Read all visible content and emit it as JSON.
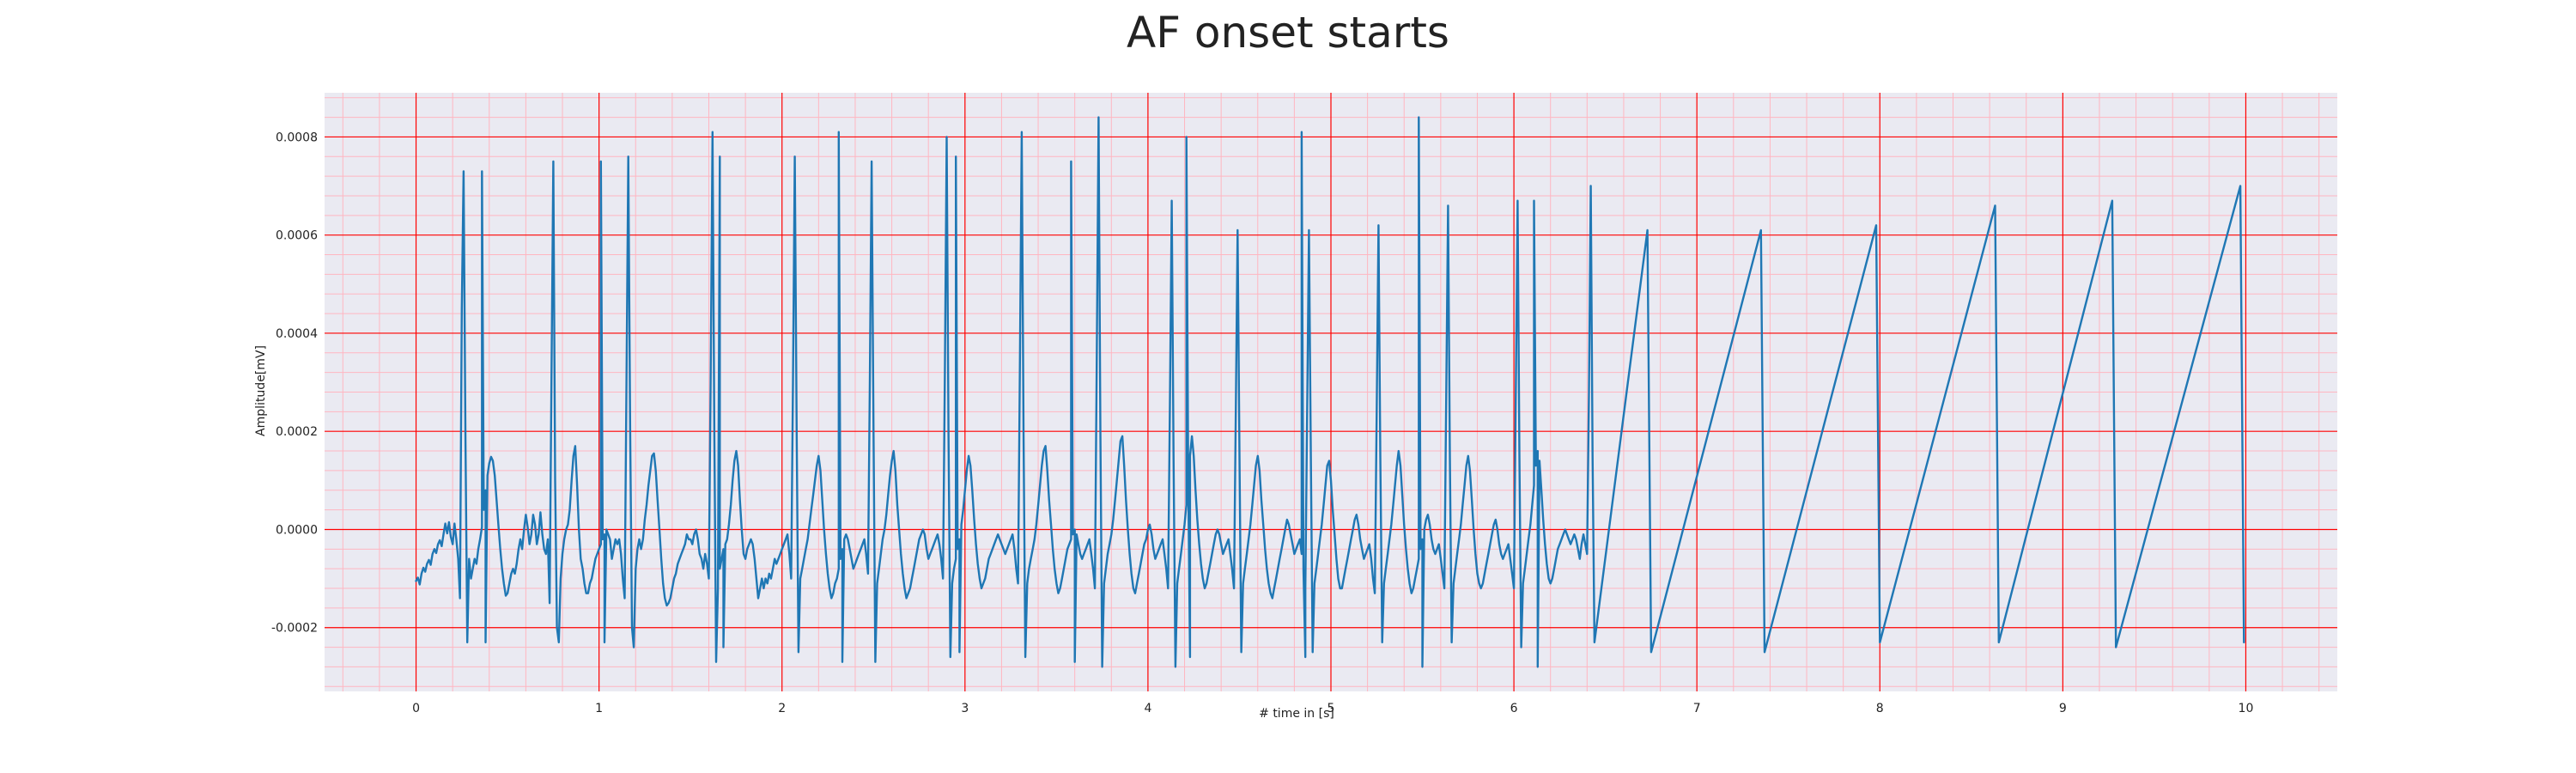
{
  "chart_data": {
    "type": "line",
    "title": "AF onset starts",
    "xlabel": "# time in [s]",
    "ylabel": "Amplitude[mV]",
    "xlim": [
      -0.5,
      10.5
    ],
    "ylim": [
      -0.00033,
      0.00089
    ],
    "xticks": [
      0,
      1,
      2,
      3,
      4,
      5,
      6,
      7,
      8,
      9,
      10
    ],
    "xtick_labels": [
      "0",
      "1",
      "2",
      "3",
      "4",
      "5",
      "6",
      "7",
      "8",
      "9",
      "10"
    ],
    "yticks": [
      -0.0002,
      0.0,
      0.0002,
      0.0004,
      0.0006,
      0.0008
    ],
    "ytick_labels": [
      "-0.0002",
      "0.0000",
      "0.0002",
      "0.0004",
      "0.0006",
      "0.0008"
    ],
    "grid": true,
    "minor_grid": true,
    "colors": {
      "background": "#eaeaf2",
      "major_grid": "#ff0000",
      "minor_grid": "#ffb6c1",
      "line": "#1f77b4"
    },
    "series": [
      {
        "sampling_hz": 100,
        "x_start": 0.0,
        "r_peaks": [
          {
            "t": 0.36,
            "amp": 0.00073,
            "s": -0.00023
          },
          {
            "t": 1.01,
            "amp": 0.00075,
            "s": -0.00023
          },
          {
            "t": 1.66,
            "amp": 0.00076,
            "s": -0.00024
          },
          {
            "t": 2.31,
            "amp": 0.00081,
            "s": -0.00027
          },
          {
            "t": 2.95,
            "amp": 0.00076,
            "s": -0.00025
          },
          {
            "t": 3.58,
            "amp": 0.00075,
            "s": -0.00027
          },
          {
            "t": 4.21,
            "amp": 0.0008,
            "s": -0.00026
          },
          {
            "t": 4.84,
            "amp": 0.00081,
            "s": -0.00026
          },
          {
            "t": 5.48,
            "amp": 0.00084,
            "s": -0.00028
          },
          {
            "t": 6.11,
            "amp": 0.00067,
            "s": -0.00028
          },
          {
            "t": 6.73,
            "amp": 0.00061,
            "s": -0.00025
          },
          {
            "t": 7.35,
            "amp": 0.00061,
            "s": -0.00025
          },
          {
            "t": 7.98,
            "amp": 0.00062,
            "s": -0.00023
          },
          {
            "t": 8.63,
            "amp": 0.00066,
            "s": -0.00023
          },
          {
            "t": 9.27,
            "amp": 0.00067,
            "s": -0.00024
          },
          {
            "t": 9.97,
            "amp": 0.0007,
            "s": -0.00023
          }
        ],
        "y": [
          -0.000105,
          -9.8e-05,
          -0.000112,
          -9e-05,
          -7.8e-05,
          -8.6e-05,
          -7e-05,
          -6.2e-05,
          -7.2e-05,
          -5e-05,
          -4e-05,
          -4.8e-05,
          -3e-05,
          -2.2e-05,
          -3.4e-05,
          -1e-05,
          1.2e-05,
          -8e-06,
          1.5e-05,
          -1.5e-05,
          -3e-05,
          1.2e-05,
          -2e-05,
          -6e-05,
          -0.00014,
          0.00045,
          0.00073,
          0.00018,
          -0.00023,
          -6e-05,
          -0.0001,
          -8e-05,
          -6e-05,
          -7e-05,
          -4e-05,
          -2e-05,
          5e-06,
          4e-05,
          8e-05,
          0.00011,
          0.000135,
          0.000148,
          0.00014,
          0.00011,
          6e-05,
          1e-05,
          -4e-05,
          -8e-05,
          -0.00011,
          -0.000135,
          -0.00013,
          -0.00011,
          -9e-05,
          -8e-05,
          -9e-05,
          -7e-05,
          -4e-05,
          -2e-05,
          -4e-05,
          0.0,
          3e-05,
          5e-06,
          -3e-05,
          -1e-05,
          3e-05,
          1e-05,
          -3e-05,
          -1e-05,
          3.5e-05,
          -1e-05,
          -4e-05,
          -5e-05,
          -2e-05,
          -0.00015,
          0.0003,
          0.00075,
          0.0001,
          -0.0002,
          -0.00023,
          -0.0001,
          -5e-05,
          -2e-05,
          0.0,
          1e-05,
          4e-05,
          0.0001,
          0.00015,
          0.00017,
          9e-05,
          0.0,
          -6e-05,
          -8e-05,
          -0.00011,
          -0.00013,
          -0.00013,
          -0.00011,
          -0.0001,
          -8e-05,
          -6e-05,
          -5e-05,
          -4e-05,
          -3e-05,
          -2e-05,
          -1e-05,
          0.0,
          -1e-05,
          -2e-05,
          -6e-05,
          -4e-05,
          -2e-05,
          -3e-05,
          -2e-05,
          -5e-05,
          -0.0001,
          -0.00014,
          0.0003,
          0.00076,
          0.0002,
          -0.0002,
          -0.00024,
          -8e-05,
          -4e-05,
          -2e-05,
          -4e-05,
          -2e-05,
          2e-05,
          5e-05,
          9e-05,
          0.00012,
          0.00015,
          0.000155,
          0.00012,
          6e-05,
          0.0,
          -6e-05,
          -0.00011,
          -0.00014,
          -0.000155,
          -0.00015,
          -0.00014,
          -0.00012,
          -0.0001,
          -9e-05,
          -7e-05,
          -6e-05,
          -5e-05,
          -4e-05,
          -3e-05,
          -1e-05,
          -2e-05,
          -2e-05,
          -3e-05,
          -1e-05,
          0.0,
          -2e-05,
          -5e-05,
          -6e-05,
          -8e-05,
          -5e-05,
          -7e-05,
          -0.0001,
          0.0003,
          0.00081,
          0.0002,
          -0.00027,
          -0.00012,
          -8e-05,
          -6e-05,
          -4e-05,
          -3e-05,
          -2e-05,
          1e-05,
          5e-05,
          0.0001,
          0.00014,
          0.00016,
          0.00013,
          6e-05,
          0.0,
          -5e-05,
          -6e-05,
          -4e-05,
          -3e-05,
          -2e-05,
          -3e-05,
          -6e-05,
          -0.0001,
          -0.00014,
          -0.00012,
          -0.0001,
          -0.00012,
          -0.0001,
          -0.00011,
          -9e-05,
          -0.0001,
          -8e-05,
          -6e-05,
          -7e-05,
          -6e-05,
          -5e-05,
          -4e-05,
          -3e-05,
          -2e-05,
          -1e-05,
          -5e-05,
          -0.0001,
          0.0003,
          0.00076,
          0.0002,
          -0.00025,
          -0.0001,
          -8e-05,
          -6e-05,
          -4e-05,
          -2e-05,
          1e-05,
          4e-05,
          7e-05,
          0.0001,
          0.00013,
          0.00015,
          0.00012,
          6e-05,
          0.0,
          -5e-05,
          -9e-05,
          -0.00012,
          -0.00014,
          -0.00013,
          -0.00011,
          -0.0001,
          -8e-05,
          -6e-05,
          -4e-05,
          -2e-05,
          -1e-05,
          -2e-05,
          -4e-05,
          -6e-05,
          -8e-05,
          -7e-05,
          -6e-05,
          -5e-05,
          -4e-05,
          -3e-05,
          -2e-05,
          -5e-05,
          -9e-05,
          0.0003,
          0.00075,
          0.0002,
          -0.00027,
          -0.00011,
          -8e-05,
          -5e-05,
          -2e-05,
          0.0,
          3e-05,
          7e-05,
          0.00011,
          0.00014,
          0.00016,
          0.00012,
          5e-05,
          0.0,
          -5e-05,
          -9e-05,
          -0.00012,
          -0.00014,
          -0.00013,
          -0.00012,
          -0.0001,
          -8e-05,
          -6e-05,
          -4e-05,
          -2e-05,
          -1e-05,
          0.0,
          -1e-05,
          -4e-05,
          -6e-05,
          -5e-05,
          -4e-05,
          -3e-05,
          -2e-05,
          -1e-05,
          -3e-05,
          -6e-05,
          -0.0001,
          0.00032,
          0.0008,
          0.0002,
          -0.00026,
          -0.00011,
          -8e-05,
          -6e-05,
          -4e-05,
          -2e-05,
          1e-05,
          4e-05,
          8e-05,
          0.00012,
          0.00015,
          0.00013,
          8e-05,
          2e-05,
          -3e-05,
          -7e-05,
          -0.0001,
          -0.00012,
          -0.00011,
          -0.0001,
          -8e-05,
          -6e-05,
          -5e-05,
          -4e-05,
          -3e-05,
          -2e-05,
          -1e-05,
          -2e-05,
          -3e-05,
          -4e-05,
          -5e-05,
          -4e-05,
          -3e-05,
          -2e-05,
          -1e-05,
          -4e-05,
          -8e-05,
          -0.00011,
          0.00032,
          0.00081,
          0.0002,
          -0.00026,
          -0.00011,
          -8e-05,
          -6e-05,
          -4e-05,
          -2e-05,
          1e-05,
          5e-05,
          9e-05,
          0.00013,
          0.00016,
          0.00017,
          0.00012,
          6e-05,
          1e-05,
          -4e-05,
          -8e-05,
          -0.00011,
          -0.00013,
          -0.00012,
          -0.0001,
          -8e-05,
          -6e-05,
          -4e-05,
          -3e-05,
          -2e-05,
          -1e-05,
          0.0,
          -1e-05,
          -3e-05,
          -5e-05,
          -6e-05,
          -5e-05,
          -4e-05,
          -3e-05,
          -2e-05,
          -5e-05,
          -8e-05,
          -0.00012,
          0.00033,
          0.00084,
          0.0002,
          -0.00028,
          -0.00011,
          -8e-05,
          -5e-05,
          -3e-05,
          -1e-05,
          2e-05,
          6e-05,
          0.0001,
          0.00014,
          0.00018,
          0.00019,
          0.00013,
          6e-05,
          0.0,
          -5e-05,
          -9e-05,
          -0.00012,
          -0.00013,
          -0.00011,
          -9e-05,
          -7e-05,
          -5e-05,
          -3e-05,
          -2e-05,
          0.0,
          1e-05,
          -1e-05,
          -4e-05,
          -6e-05,
          -5e-05,
          -4e-05,
          -3e-05,
          -2e-05,
          -5e-05,
          -8e-05,
          -0.00012,
          0.00026,
          0.00067,
          0.00015,
          -0.00028,
          -0.00011,
          -8e-05,
          -5e-05,
          -2e-05,
          1e-05,
          5e-05,
          0.0001,
          0.00015,
          0.00019,
          0.00015,
          8e-05,
          2e-05,
          -3e-05,
          -7e-05,
          -0.0001,
          -0.00012,
          -0.00011,
          -9e-05,
          -7e-05,
          -5e-05,
          -3e-05,
          -1e-05,
          0.0,
          -1e-05,
          -3e-05,
          -5e-05,
          -4e-05,
          -3e-05,
          -2e-05,
          -5e-05,
          -8e-05,
          -0.00012,
          0.00024,
          0.00061,
          0.00015,
          -0.00025,
          -0.00011,
          -8e-05,
          -5e-05,
          -2e-05,
          1e-05,
          5e-05,
          9e-05,
          0.00013,
          0.00015,
          0.00012,
          6e-05,
          1e-05,
          -4e-05,
          -8e-05,
          -0.00011,
          -0.00013,
          -0.00014,
          -0.00012,
          -0.0001,
          -8e-05,
          -6e-05,
          -4e-05,
          -2e-05,
          0.0,
          2e-05,
          1e-05,
          -1e-05,
          -3e-05,
          -5e-05,
          -4e-05,
          -3e-05,
          -2e-05,
          -5e-05,
          -8e-05,
          -0.00012,
          0.00024,
          0.00061,
          0.00015,
          -0.00025,
          -0.00011,
          -8e-05,
          -5e-05,
          -2e-05,
          1e-05,
          5e-05,
          9e-05,
          0.00013,
          0.00014,
          0.0001,
          4e-05,
          -1e-05,
          -6e-05,
          -0.0001,
          -0.00012,
          -0.00012,
          -0.0001,
          -8e-05,
          -6e-05,
          -4e-05,
          -2e-05,
          0.0,
          2e-05,
          3e-05,
          1e-05,
          -2e-05,
          -4e-05,
          -6e-05,
          -5e-05,
          -4e-05,
          -3e-05,
          -6e-05,
          -0.0001,
          -0.00013,
          0.00024,
          0.00062,
          0.00015,
          -0.00023,
          -0.00011,
          -8e-05,
          -5e-05,
          -2e-05,
          1e-05,
          5e-05,
          9e-05,
          0.00013,
          0.00016,
          0.00013,
          7e-05,
          1e-05,
          -4e-05,
          -8e-05,
          -0.00011,
          -0.00013,
          -0.00012,
          -0.0001,
          -8e-05,
          -6e-05,
          -4e-05,
          -2e-05,
          0.0,
          2e-05,
          3e-05,
          1e-05,
          -2e-05,
          -4e-05,
          -5e-05,
          -4e-05,
          -3e-05,
          -6e-05,
          -9e-05,
          -0.00012,
          0.00026,
          0.00066,
          0.00015,
          -0.00023,
          -0.00011,
          -8e-05,
          -5e-05,
          -2e-05,
          1e-05,
          5e-05,
          9e-05,
          0.00013,
          0.00015,
          0.00012,
          6e-05,
          0.0,
          -5e-05,
          -9e-05,
          -0.00011,
          -0.00012,
          -0.00011,
          -9e-05,
          -7e-05,
          -5e-05,
          -3e-05,
          -1e-05,
          1e-05,
          2e-05,
          0.0,
          -3e-05,
          -5e-05,
          -6e-05,
          -5e-05,
          -4e-05,
          -3e-05,
          -6e-05,
          -9e-05,
          -0.00012,
          0.00026,
          0.00067,
          0.00015,
          -0.00024,
          -0.00011,
          -8e-05,
          -5e-05,
          -2e-05,
          1e-05,
          5e-05,
          9e-05,
          0.00013,
          0.00016,
          0.00014,
          8e-05,
          2e-05,
          -3e-05,
          -7e-05,
          -0.0001,
          -0.00011,
          -0.0001,
          -8e-05,
          -6e-05,
          -4e-05,
          -3e-05,
          -2e-05,
          -1e-05,
          0.0,
          -1e-05,
          -2e-05,
          -3e-05,
          -2e-05,
          -1e-05,
          -2e-05,
          -4e-05,
          -6e-05,
          -3e-05,
          -1e-05,
          -3e-05,
          -5e-05,
          0.00028,
          0.0007,
          0.00015,
          -0.00023
        ]
      }
    ]
  }
}
